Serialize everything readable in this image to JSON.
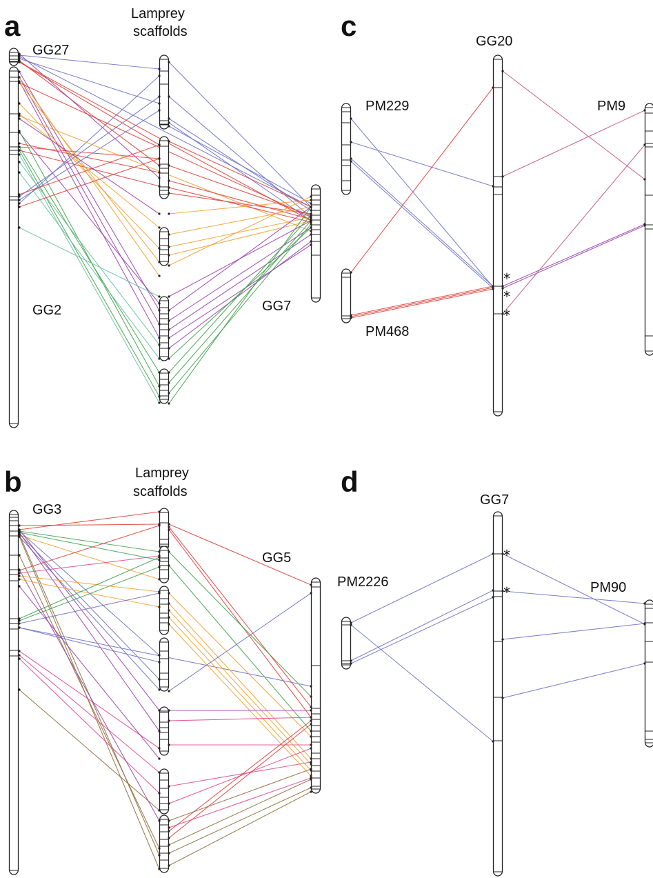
{
  "colors": {
    "blue": "#6a6fbf",
    "red": "#de3c36",
    "orange": "#f0a030",
    "purple": "#9440a8",
    "green": "#3ea048",
    "teal": "#68bfa0",
    "pink": "#e0478a",
    "brown": "#8c6a3a",
    "rose": "#c0557a"
  },
  "panels": [
    {
      "letter": "a",
      "labels": {
        "left": "GG27",
        "left2": "GG2",
        "middle": [
          "Lamprey",
          "scaffolds"
        ],
        "right": "GG7"
      }
    },
    {
      "letter": "b",
      "labels": {
        "left": "GG3",
        "middle": [
          "Lamprey",
          "scaffolds"
        ],
        "right": "GG5"
      }
    },
    {
      "letter": "c",
      "labels": {
        "left_top": "PM229",
        "left_bottom": "PM468",
        "middle": "GG20",
        "right": "PM9"
      },
      "marks": [
        "*",
        "*",
        "*"
      ]
    },
    {
      "letter": "d",
      "labels": {
        "left": "PM2226",
        "middle": "GG7",
        "right": "PM90"
      },
      "marks": [
        "*",
        "*"
      ]
    }
  ]
}
